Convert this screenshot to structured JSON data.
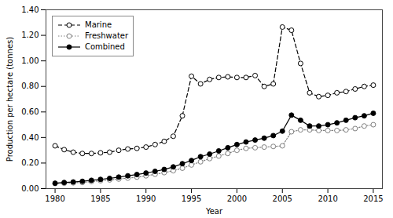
{
  "chart_data": {
    "type": "line",
    "x": [
      1980,
      1981,
      1982,
      1983,
      1984,
      1985,
      1986,
      1987,
      1988,
      1989,
      1990,
      1991,
      1992,
      1993,
      1994,
      1995,
      1996,
      1997,
      1998,
      1999,
      2000,
      2001,
      2002,
      2003,
      2004,
      2005,
      2006,
      2007,
      2008,
      2009,
      2010,
      2011,
      2012,
      2013,
      2014,
      2015
    ],
    "series": [
      {
        "name": "Marine",
        "color": "black",
        "line_style": "dashed",
        "marker": "open circle",
        "values": [
          0.335,
          0.305,
          0.285,
          0.275,
          0.275,
          0.28,
          0.285,
          0.3,
          0.31,
          0.315,
          0.325,
          0.345,
          0.37,
          0.41,
          0.57,
          0.88,
          0.82,
          0.855,
          0.87,
          0.875,
          0.87,
          0.87,
          0.885,
          0.8,
          0.82,
          1.265,
          1.24,
          0.98,
          0.75,
          0.72,
          0.73,
          0.75,
          0.76,
          0.78,
          0.8,
          0.81
        ]
      },
      {
        "name": "Freshwater",
        "color": "gray",
        "line_style": "dotted",
        "marker": "open circle",
        "values": [
          0.04,
          0.042,
          0.045,
          0.048,
          0.055,
          0.062,
          0.068,
          0.075,
          0.082,
          0.09,
          0.1,
          0.112,
          0.125,
          0.14,
          0.16,
          0.185,
          0.21,
          0.235,
          0.255,
          0.275,
          0.3,
          0.315,
          0.32,
          0.325,
          0.33,
          0.335,
          0.445,
          0.46,
          0.46,
          0.455,
          0.455,
          0.455,
          0.46,
          0.47,
          0.49,
          0.5
        ]
      },
      {
        "name": "Combined",
        "color": "black",
        "line_style": "solid",
        "marker": "filled circle",
        "values": [
          0.042,
          0.048,
          0.052,
          0.057,
          0.065,
          0.072,
          0.08,
          0.09,
          0.1,
          0.11,
          0.122,
          0.135,
          0.15,
          0.17,
          0.195,
          0.22,
          0.25,
          0.27,
          0.295,
          0.32,
          0.345,
          0.365,
          0.38,
          0.395,
          0.415,
          0.45,
          0.575,
          0.535,
          0.49,
          0.49,
          0.5,
          0.515,
          0.535,
          0.555,
          0.57,
          0.59
        ]
      }
    ],
    "xlabel": "Year",
    "ylabel": "Production per hectare (tonnes)",
    "xlim": [
      1979,
      2016
    ],
    "ylim": [
      0.0,
      1.4
    ],
    "xticks": [
      1980,
      1985,
      1990,
      1995,
      2000,
      2005,
      2010,
      2015
    ],
    "yticks": [
      {
        "value": 0.0,
        "label": "0.00"
      },
      {
        "value": 0.2,
        "label": "0.20"
      },
      {
        "value": 0.4,
        "label": "0.40"
      },
      {
        "value": 0.6,
        "label": "0.60"
      },
      {
        "value": 0.8,
        "label": "0.80"
      },
      {
        "value": 1.0,
        "label": "1.00"
      },
      {
        "value": 1.2,
        "label": "1.20"
      },
      {
        "value": 1.4,
        "label": "1.40"
      }
    ],
    "legend": "upper left"
  }
}
